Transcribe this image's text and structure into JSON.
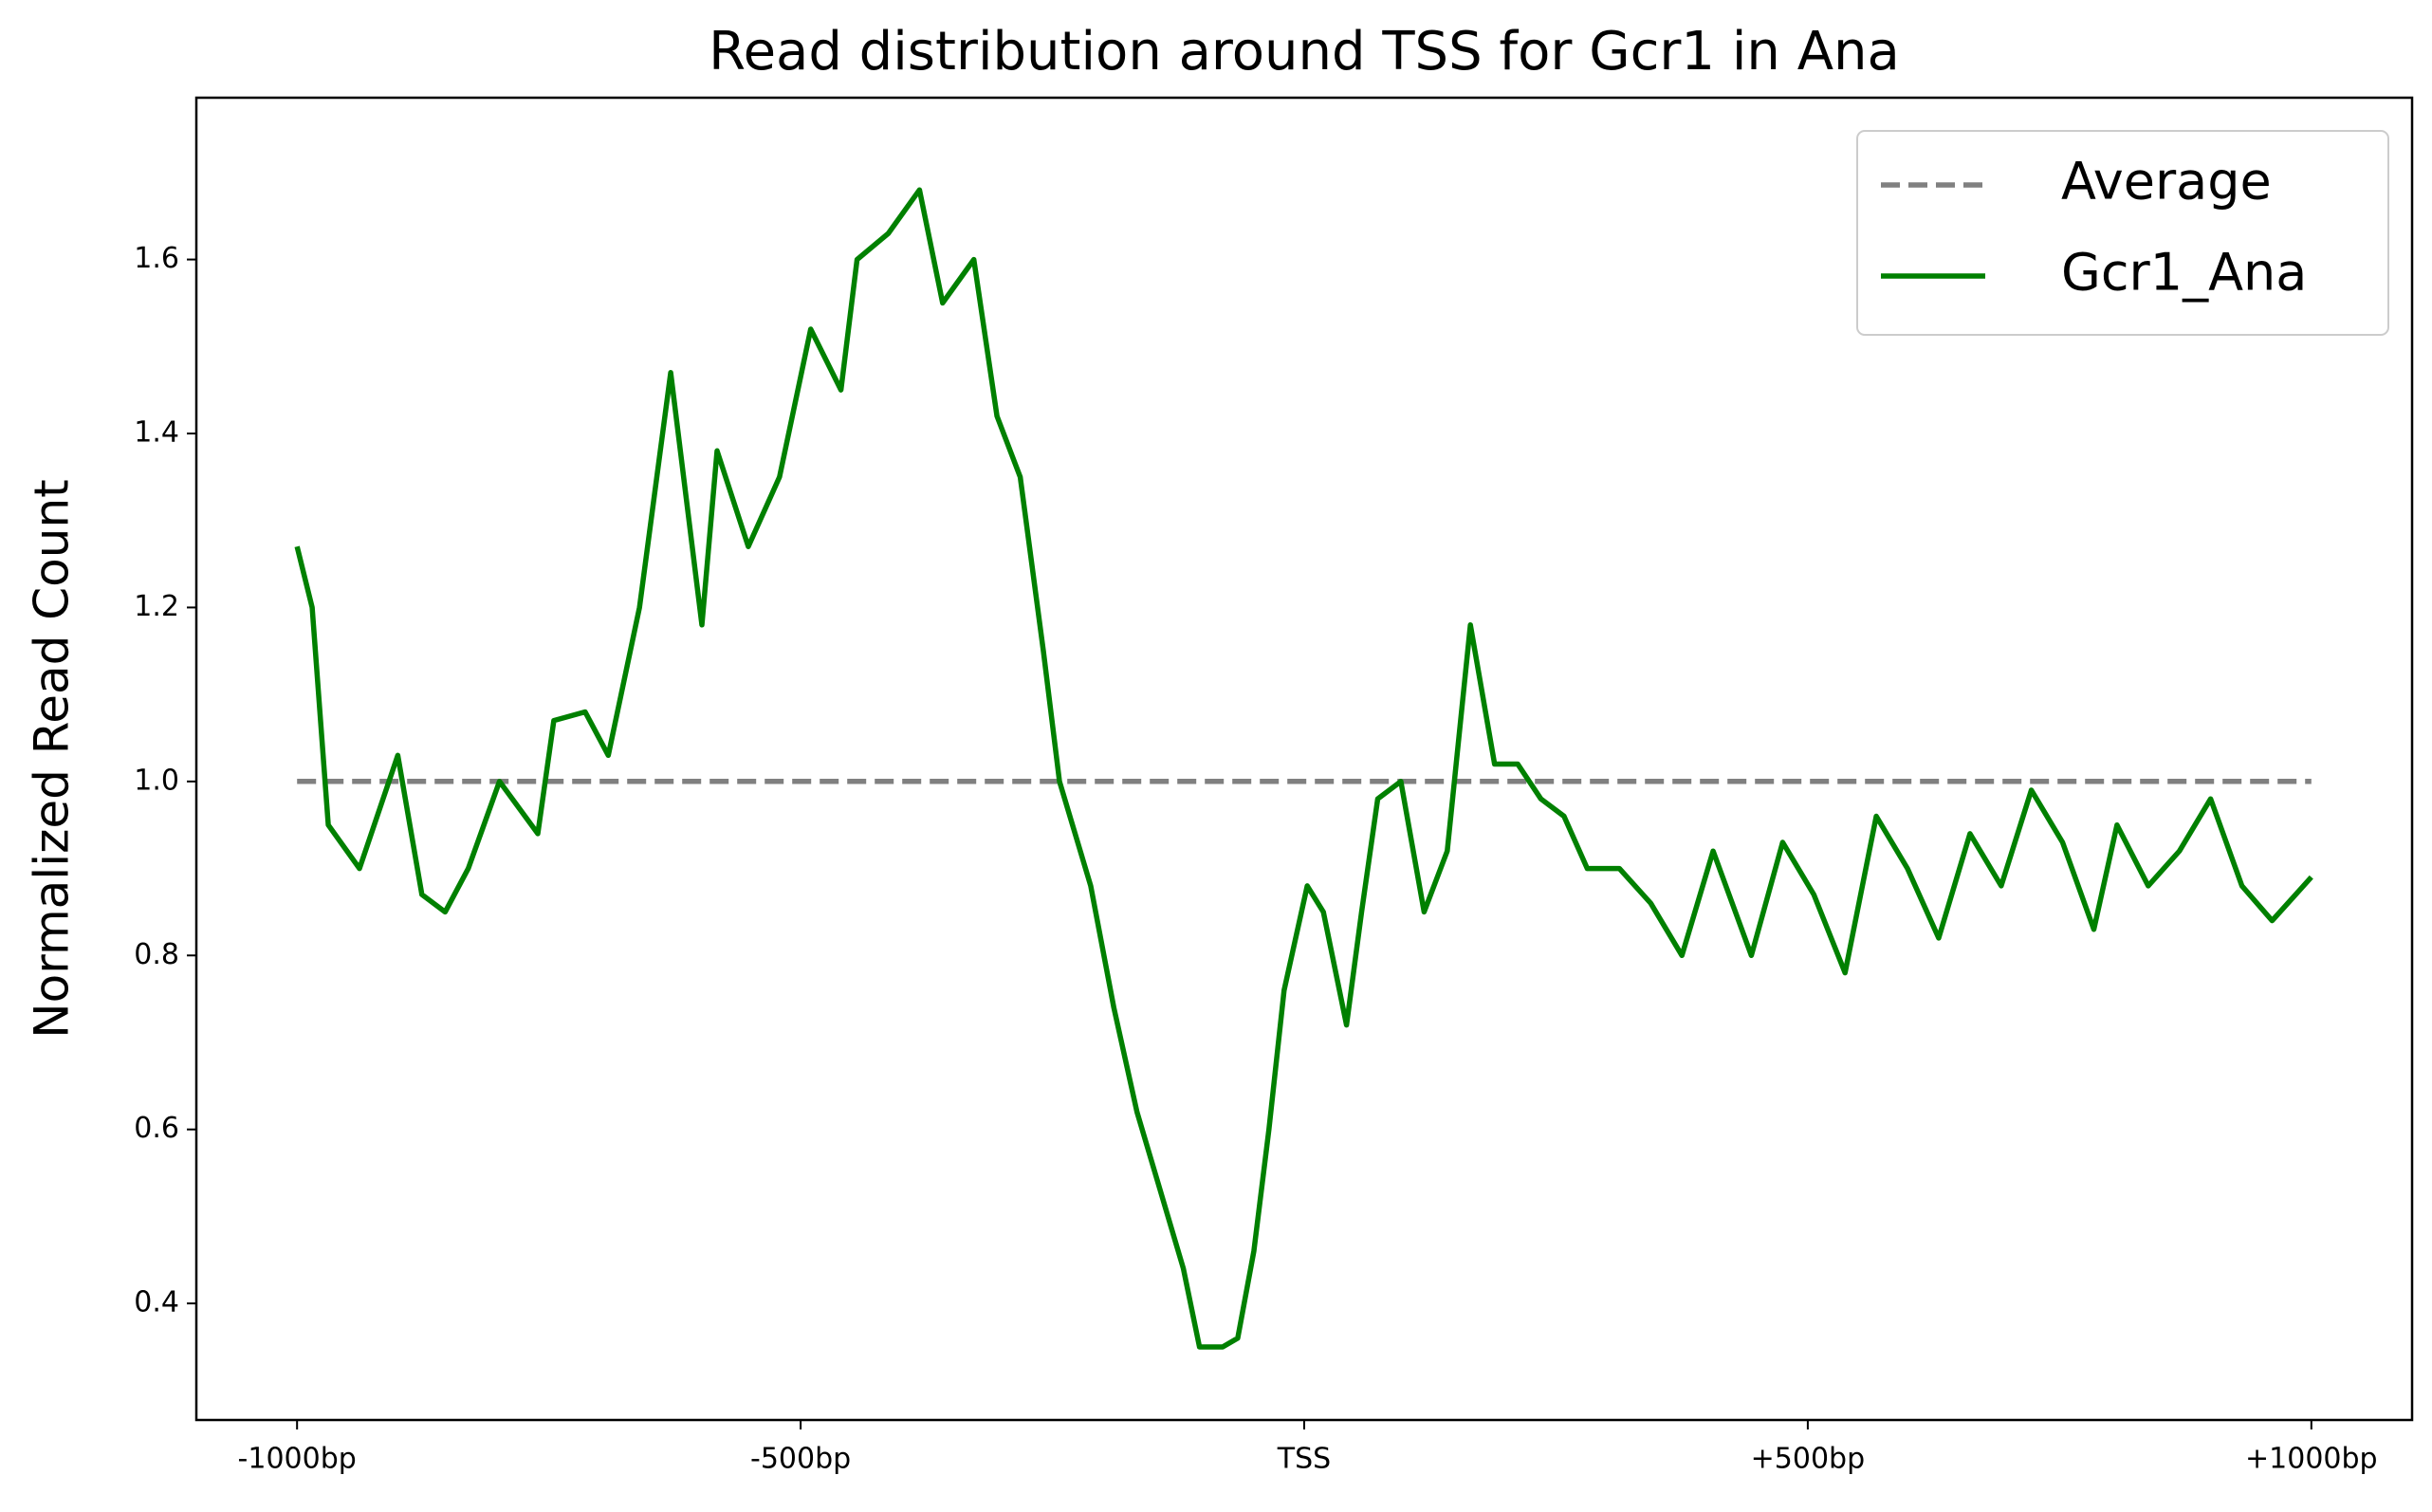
{
  "chart_data": {
    "type": "line",
    "title": "Read distribution around TSS for Gcr1 in Ana",
    "y_label": "Normalized Read Count",
    "xlim": [
      -1100,
      1100
    ],
    "ylim": [
      0.266,
      1.786
    ],
    "xticks": [
      {
        "value": -1000,
        "label": "-1000bp"
      },
      {
        "value": -500,
        "label": "-500bp"
      },
      {
        "value": 0,
        "label": "TSS"
      },
      {
        "value": 500,
        "label": "+500bp"
      },
      {
        "value": 1000,
        "label": "+1000bp"
      }
    ],
    "yticks": [
      0.4,
      0.6,
      0.8,
      {
        "value": 1,
        "label": "1.0"
      },
      1.2,
      1.4,
      1.6
    ],
    "grid": false,
    "legend": "upper right",
    "series": [
      {
        "name": "Average",
        "color": "#808080",
        "linestyle": "--",
        "x": [
          -1000,
          1000
        ],
        "values": [
          1,
          1
        ]
      },
      {
        "name": "Gcr1_Ana",
        "color": "#008000",
        "linestyle": "-",
        "x": [
          -1000,
          -985,
          -969,
          -938,
          -900,
          -876,
          -853,
          -830,
          -799,
          -761,
          -745,
          -714,
          -691,
          -660,
          -629,
          -598,
          -583,
          -552,
          -521,
          -490,
          -460,
          -444,
          -413,
          -382,
          -359,
          -328,
          -305,
          -282,
          -259,
          -243,
          -212,
          -189,
          -166,
          -143,
          -120,
          -104,
          -81,
          -66,
          -50,
          -35,
          -20,
          3,
          19,
          42,
          57,
          73,
          96,
          119,
          142,
          165,
          189,
          212,
          235,
          258,
          281,
          313,
          344,
          375,
          406,
          444,
          475,
          506,
          537,
          568,
          599,
          630,
          661,
          692,
          722,
          753,
          784,
          807,
          838,
          869,
          900,
          931,
          961,
          1000
        ],
        "values": [
          1.27,
          1.2,
          0.95,
          0.9,
          1.03,
          0.87,
          0.85,
          0.9,
          1.0,
          0.94,
          1.07,
          1.08,
          1.03,
          1.2,
          1.47,
          1.18,
          1.38,
          1.27,
          1.35,
          1.52,
          1.45,
          1.6,
          1.63,
          1.68,
          1.55,
          1.6,
          1.42,
          1.35,
          1.15,
          1.0,
          0.88,
          0.74,
          0.62,
          0.53,
          0.44,
          0.35,
          0.35,
          0.36,
          0.46,
          0.6,
          0.76,
          0.88,
          0.85,
          0.72,
          0.85,
          0.98,
          1.0,
          0.85,
          0.92,
          1.18,
          1.02,
          1.02,
          0.98,
          0.96,
          0.9,
          0.9,
          0.86,
          0.8,
          0.92,
          0.8,
          0.93,
          0.87,
          0.78,
          0.96,
          0.9,
          0.82,
          0.94,
          0.88,
          0.99,
          0.93,
          0.83,
          0.95,
          0.88,
          0.92,
          0.98,
          0.88,
          0.84,
          0.89
        ]
      }
    ]
  }
}
